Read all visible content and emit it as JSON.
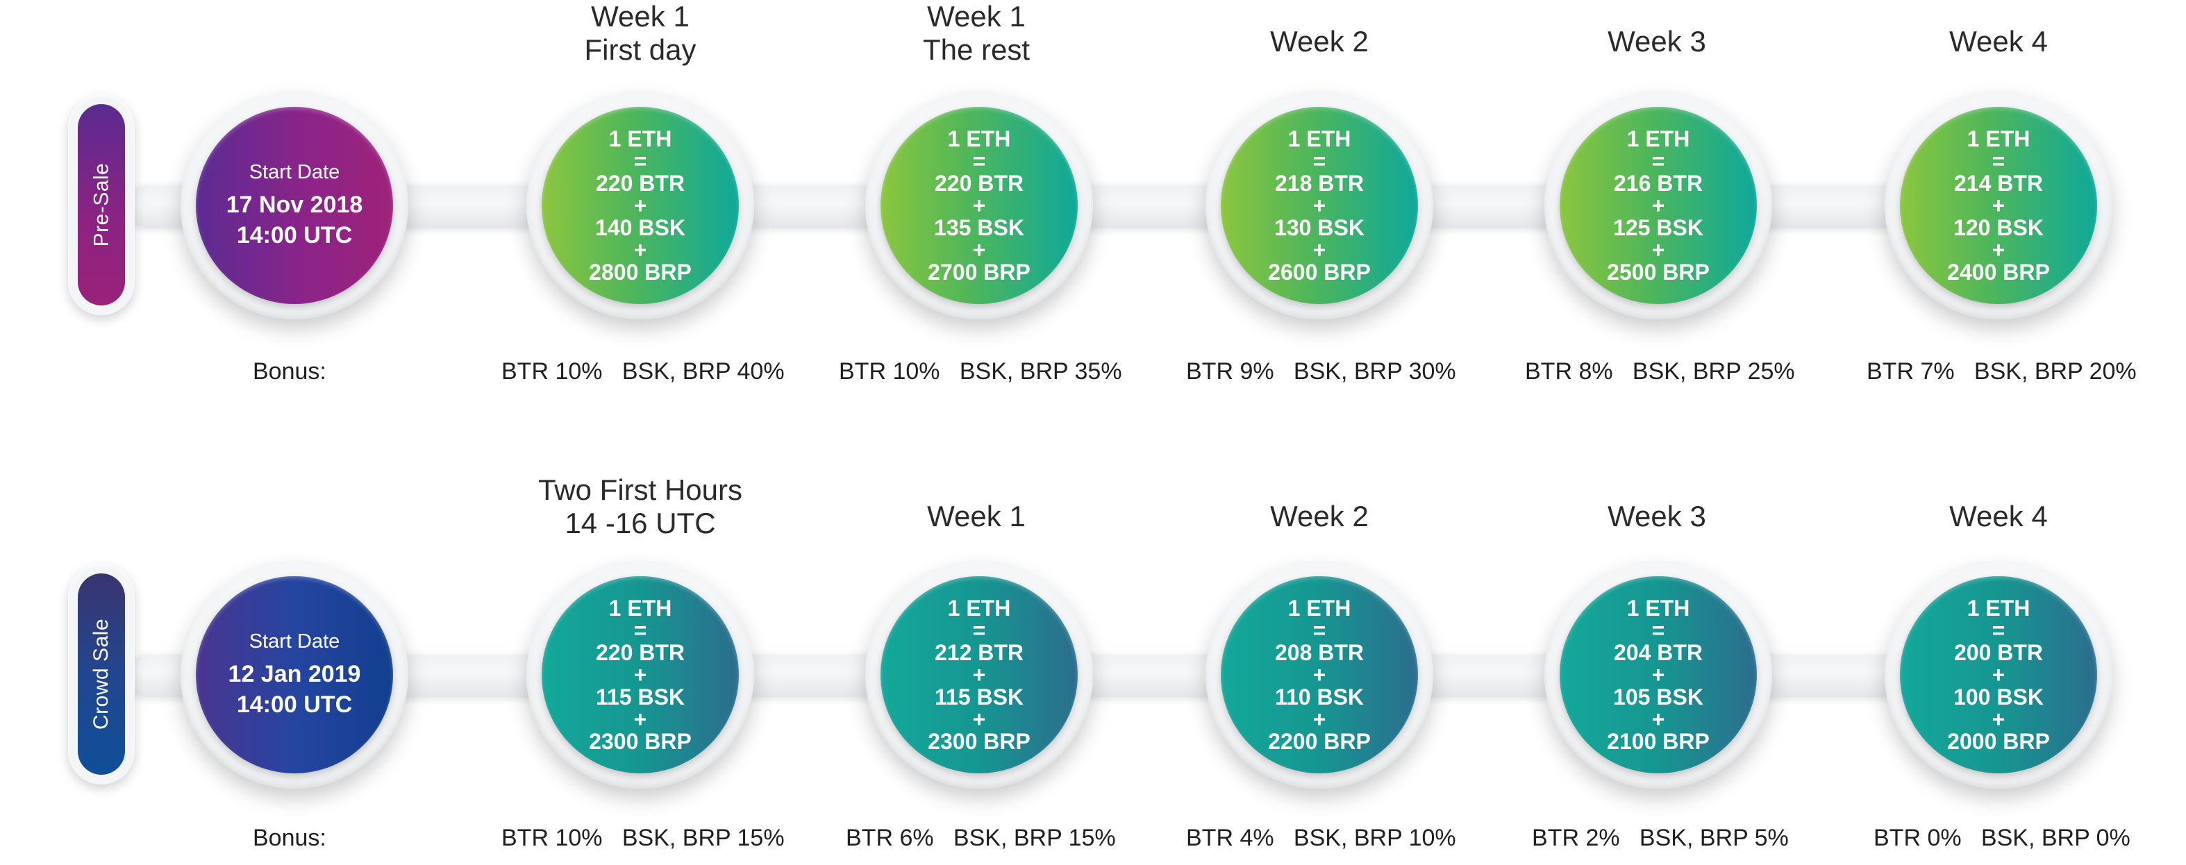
{
  "pre_sale": {
    "label": "Pre-Sale",
    "start": {
      "label": "Start Date",
      "date": "17 Nov 2018",
      "time": "14:00 UTC"
    },
    "bonus_label": "Bonus:",
    "periods": [
      {
        "title_line1": "Week 1",
        "title_line2": "First day",
        "eth": "1 ETH",
        "eq": "=",
        "btr": "220 BTR",
        "plus1": "+",
        "bsk": "140 BSK",
        "plus2": "+",
        "brp": "2800 BRP",
        "bonus": "BTR 10%   BSK, BRP 40%"
      },
      {
        "title_line1": "Week 1",
        "title_line2": "The rest",
        "eth": "1 ETH",
        "eq": "=",
        "btr": "220 BTR",
        "plus1": "+",
        "bsk": "135 BSK",
        "plus2": "+",
        "brp": "2700 BRP",
        "bonus": "BTR 10%   BSK, BRP 35%"
      },
      {
        "title_line1": "Week 2",
        "title_line2": "",
        "eth": "1 ETH",
        "eq": "=",
        "btr": "218 BTR",
        "plus1": "+",
        "bsk": "130 BSK",
        "plus2": "+",
        "brp": "2600 BRP",
        "bonus": "BTR 9%   BSK, BRP 30%"
      },
      {
        "title_line1": "Week 3",
        "title_line2": "",
        "eth": "1 ETH",
        "eq": "=",
        "btr": "216 BTR",
        "plus1": "+",
        "bsk": "125 BSK",
        "plus2": "+",
        "brp": "2500 BRP",
        "bonus": "BTR 8%   BSK, BRP 25%"
      },
      {
        "title_line1": "Week 4",
        "title_line2": "",
        "eth": "1 ETH",
        "eq": "=",
        "btr": "214 BTR",
        "plus1": "+",
        "bsk": "120 BSK",
        "plus2": "+",
        "brp": "2400 BRP",
        "bonus": "BTR 7%   BSK, BRP 20%"
      }
    ]
  },
  "crowd_sale": {
    "label": "Crowd Sale",
    "start": {
      "label": "Start Date",
      "date": "12 Jan 2019",
      "time": "14:00 UTC"
    },
    "bonus_label": "Bonus:",
    "periods": [
      {
        "title_line1": "Two First Hours",
        "title_line2": "14 -16 UTC",
        "eth": "1 ETH",
        "eq": "=",
        "btr": "220 BTR",
        "plus1": "+",
        "bsk": "115 BSK",
        "plus2": "+",
        "brp": "2300 BRP",
        "bonus": "BTR 10%   BSK, BRP 15%"
      },
      {
        "title_line1": "Week 1",
        "title_line2": "",
        "eth": "1 ETH",
        "eq": "=",
        "btr": "212 BTR",
        "plus1": "+",
        "bsk": "115 BSK",
        "plus2": "+",
        "brp": "2300 BRP",
        "bonus": "BTR 6%   BSK, BRP 15%"
      },
      {
        "title_line1": "Week 2",
        "title_line2": "",
        "eth": "1 ETH",
        "eq": "=",
        "btr": "208 BTR",
        "plus1": "+",
        "bsk": "110 BSK",
        "plus2": "+",
        "brp": "2200 BRP",
        "bonus": "BTR 4%   BSK, BRP 10%"
      },
      {
        "title_line1": "Week 3",
        "title_line2": "",
        "eth": "1 ETH",
        "eq": "=",
        "btr": "204 BTR",
        "plus1": "+",
        "bsk": "105 BSK",
        "plus2": "+",
        "brp": "2100 BRP",
        "bonus": "BTR 2%   BSK, BRP 5%"
      },
      {
        "title_line1": "Week 4",
        "title_line2": "",
        "eth": "1 ETH",
        "eq": "=",
        "btr": "200 BTR",
        "plus1": "+",
        "bsk": "100 BSK",
        "plus2": "+",
        "brp": "2000 BRP",
        "bonus": "BTR 0%   BSK, BRP 0%"
      }
    ]
  },
  "colors": {
    "presale_purple": "#8a2383",
    "presale_green": "#8cc63f",
    "presale_teal": "#0fa89a",
    "crowdsale_blue": "#123f8f",
    "crowdsale_teal": "#14a89b"
  }
}
